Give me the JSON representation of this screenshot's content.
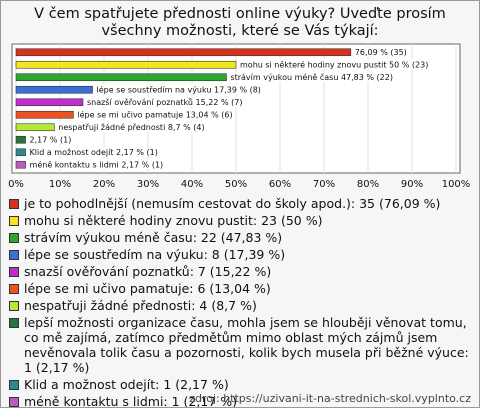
{
  "chart_data": {
    "type": "bar",
    "orientation": "horizontal",
    "title": "V čem spatřujete přednosti online výuky? Uveďte prosím všechny možnosti, které se Vás týkají:",
    "categories": [
      "je to pohodlnější (nemusím cestovat do školy apod.): 35 (76,09 %)",
      "mohu si některé hodiny znovu pustit: 23 (50 %)",
      "strávím výukou méně času: 22 (47,83 %)",
      "lépe se soustředím na výuku: 8 (17,39 %)",
      "snazší ověřování poznatků: 7 (15,22 %)",
      "lépe se mi učivo pamatuje: 6 (13,04 %)",
      "nespatřuji žádné přednosti: 4 (8,7 %)",
      "lepší možnosti organizace času, mohla jsem se hlouběji věnovat tomu, co mě zajímá, zatímco předmětům mimo oblast mých zájmů jsem nevěnovala tolik času a pozornosti, kolik bych musela při běžné výuce: 1 (2,17 %)",
      "Klid a možnost odejít: 1 (2,17 %)",
      "méně kontaktu s lidmi: 1 (2,17 %)"
    ],
    "values": [
      76.09,
      50,
      47.83,
      17.39,
      15.22,
      13.04,
      8.7,
      2.17,
      2.17,
      2.17
    ],
    "value_labels": [
      "76,09 % (35)",
      "mohu si některé hodiny znovu pustit 50 % (23)",
      "strávím výukou méně času 47,83 % (22)",
      "lépe se soustředím na výuku 17,39 % (8)",
      "snazší ověřování poznatků 15,22 % (7)",
      "lépe se mi učivo pamatuje 13,04 % (6)",
      "nespatřuji žádné přednosti 8,7 % (4)",
      "2,17 % (1)",
      "Klid a možnost odejít 2,17 % (1)",
      "méně kontaktu s lidmi 2,17 % (1)"
    ],
    "colors": [
      "#d8321f",
      "#f3e620",
      "#2ea52c",
      "#3b6fd6",
      "#c12ecb",
      "#ec5322",
      "#b3e838",
      "#26773b",
      "#2c8a8a",
      "#b75bbf"
    ],
    "xlim": [
      0,
      100
    ],
    "xticks": [
      {
        "value": 0,
        "label": "0%"
      },
      {
        "value": 10,
        "label": "10%"
      },
      {
        "value": 20,
        "label": "20%"
      },
      {
        "value": 30,
        "label": "30%"
      },
      {
        "value": 40,
        "label": "40%"
      },
      {
        "value": 50,
        "label": "50%"
      },
      {
        "value": 60,
        "label": "60%"
      },
      {
        "value": 70,
        "label": "70%"
      },
      {
        "value": 80,
        "label": "80%"
      },
      {
        "value": 90,
        "label": "90%"
      },
      {
        "value": 100,
        "label": "100%"
      }
    ],
    "grid": true,
    "source": "zdroj: https://uzivani-it-na-strednich-skol.vyplnto.cz"
  }
}
